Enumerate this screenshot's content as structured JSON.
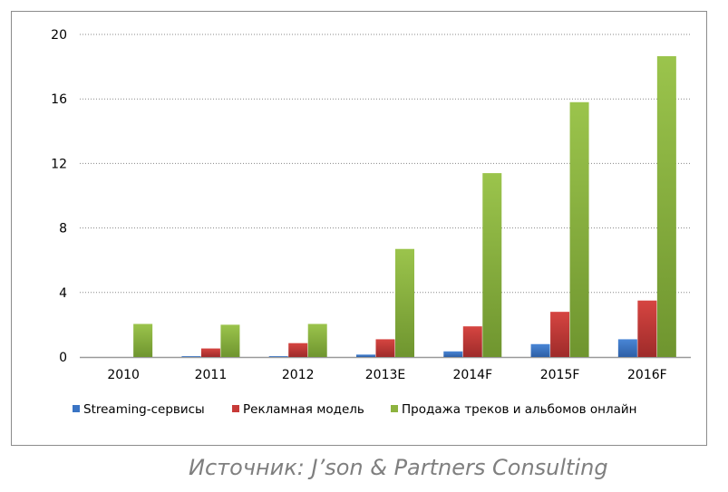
{
  "chart_data": {
    "type": "bar",
    "title": "",
    "xlabel": "",
    "ylabel": "",
    "ylim": [
      0,
      20
    ],
    "yticks": [
      0,
      4,
      8,
      12,
      16,
      20
    ],
    "grid": true,
    "legend_position": "bottom",
    "categories": [
      "2010",
      "2011",
      "2012",
      "2013E",
      "2014F",
      "2015F",
      "2016F"
    ],
    "series": [
      {
        "name": "Streaming-сервисы",
        "color": "#3a74c4",
        "values": [
          0,
          0.05,
          0.05,
          0.15,
          0.35,
          0.8,
          1.1
        ]
      },
      {
        "name": "Рекламная модель",
        "color": "#c73a38",
        "values": [
          0,
          0.53,
          0.86,
          1.1,
          1.9,
          2.8,
          3.5
        ]
      },
      {
        "name": "Продажа треков и альбомов онлайн",
        "color": "#8db33f",
        "values": [
          2.05,
          2.0,
          2.05,
          6.7,
          11.4,
          15.8,
          18.65
        ]
      }
    ]
  },
  "source": "Источник: J’son & Partners Consulting"
}
